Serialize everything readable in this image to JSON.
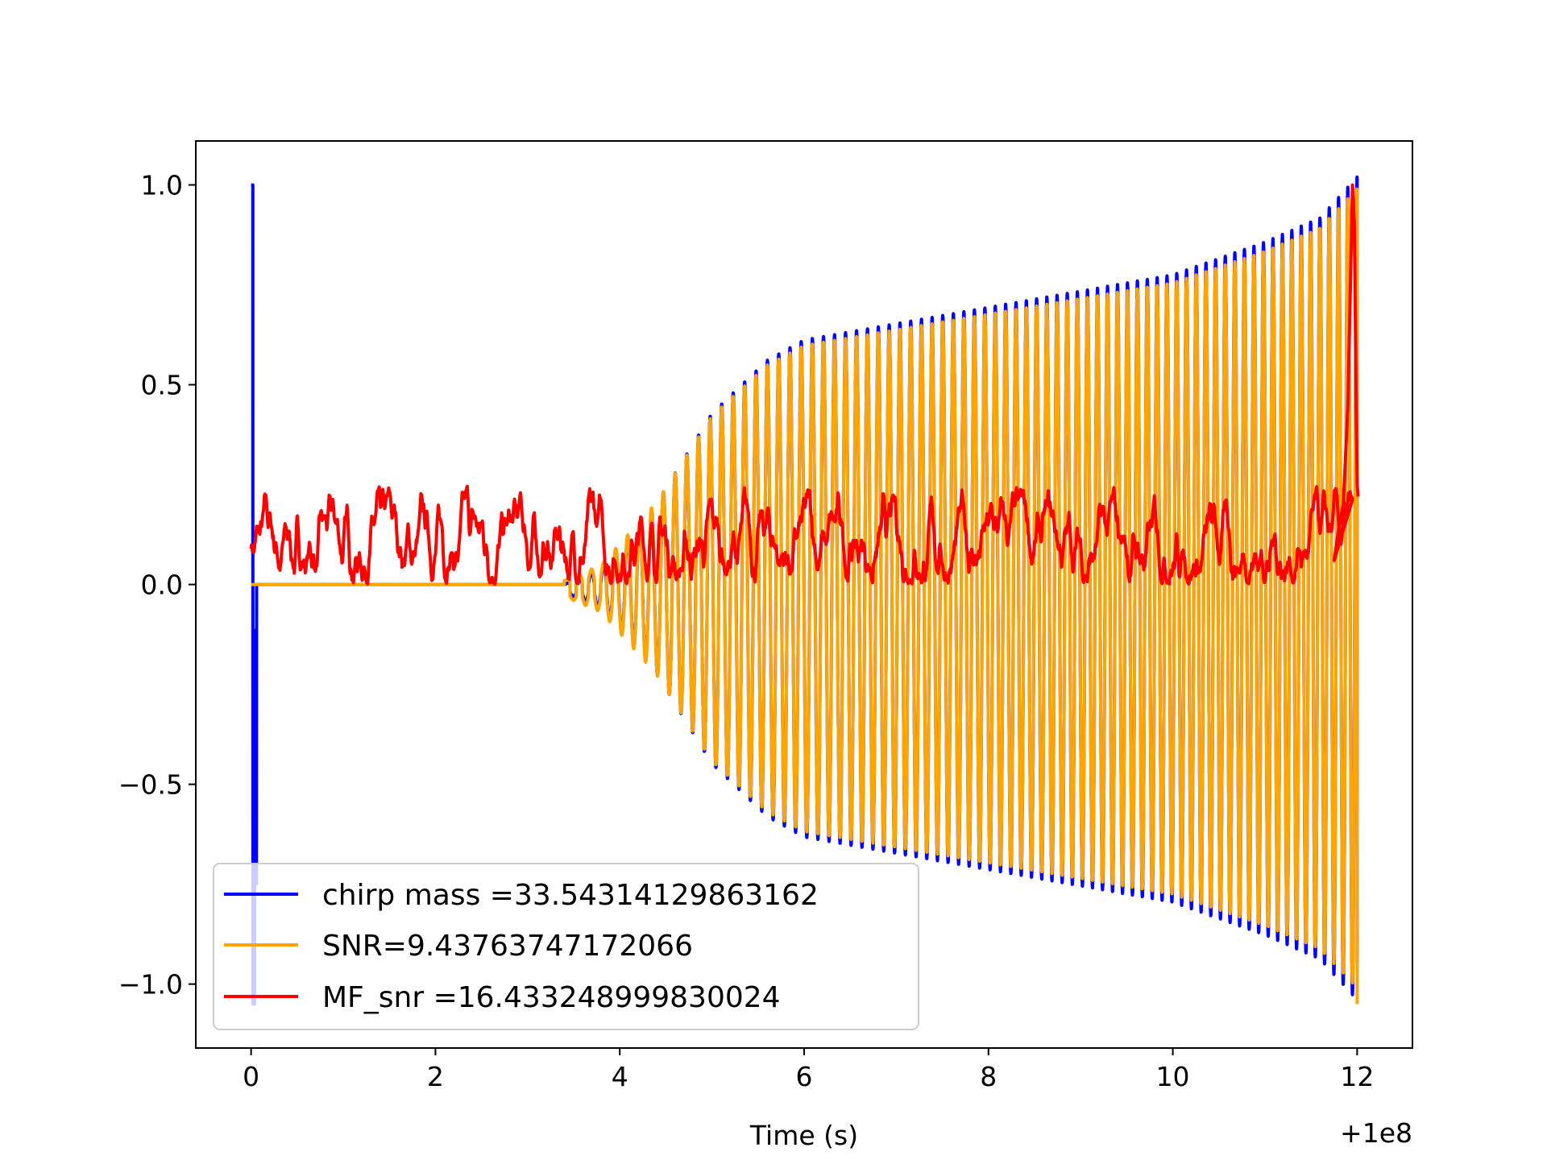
{
  "chart_data": {
    "type": "line",
    "title": "",
    "xlabel": "Time (s)",
    "ylabel": "",
    "x_offset_label": "+1e8",
    "xlim": [
      -0.6,
      12.6
    ],
    "ylim": [
      -1.16,
      1.11
    ],
    "x_ticks": [
      0,
      2,
      4,
      6,
      8,
      10,
      12
    ],
    "x_tick_labels": [
      "0",
      "2",
      "4",
      "6",
      "8",
      "10",
      "12"
    ],
    "y_ticks": [
      -1.0,
      -0.5,
      0.0,
      0.5,
      1.0
    ],
    "y_tick_labels": [
      "−1.0",
      "−0.5",
      "0.0",
      "0.5",
      "1.0"
    ],
    "grid": false,
    "legend_position": "lower-left",
    "series": [
      {
        "name": "chirp mass =33.54314129863162",
        "color": "#0000ff",
        "description_points": {
          "envelope_t": [
            0,
            0.05,
            3.4,
            3.8,
            4.4,
            5.0,
            5.6,
            6.0,
            6.5,
            7.0,
            8.0,
            9.0,
            10.0,
            11.0,
            11.6,
            12.0
          ],
          "envelope_a": [
            1.0,
            0.0,
            0.0,
            0.04,
            0.2,
            0.42,
            0.55,
            0.6,
            0.62,
            0.64,
            0.68,
            0.72,
            0.76,
            0.84,
            0.9,
            1.0
          ]
        }
      },
      {
        "name": "SNR=9.43763747172066",
        "color": "#ffa500"
      },
      {
        "name": "MF_snr =16.433248999830024",
        "color": "#ff0000",
        "baseline_range": [
          0.0,
          0.25
        ],
        "peak": {
          "x": 12.0,
          "y": 1.0
        }
      }
    ]
  }
}
